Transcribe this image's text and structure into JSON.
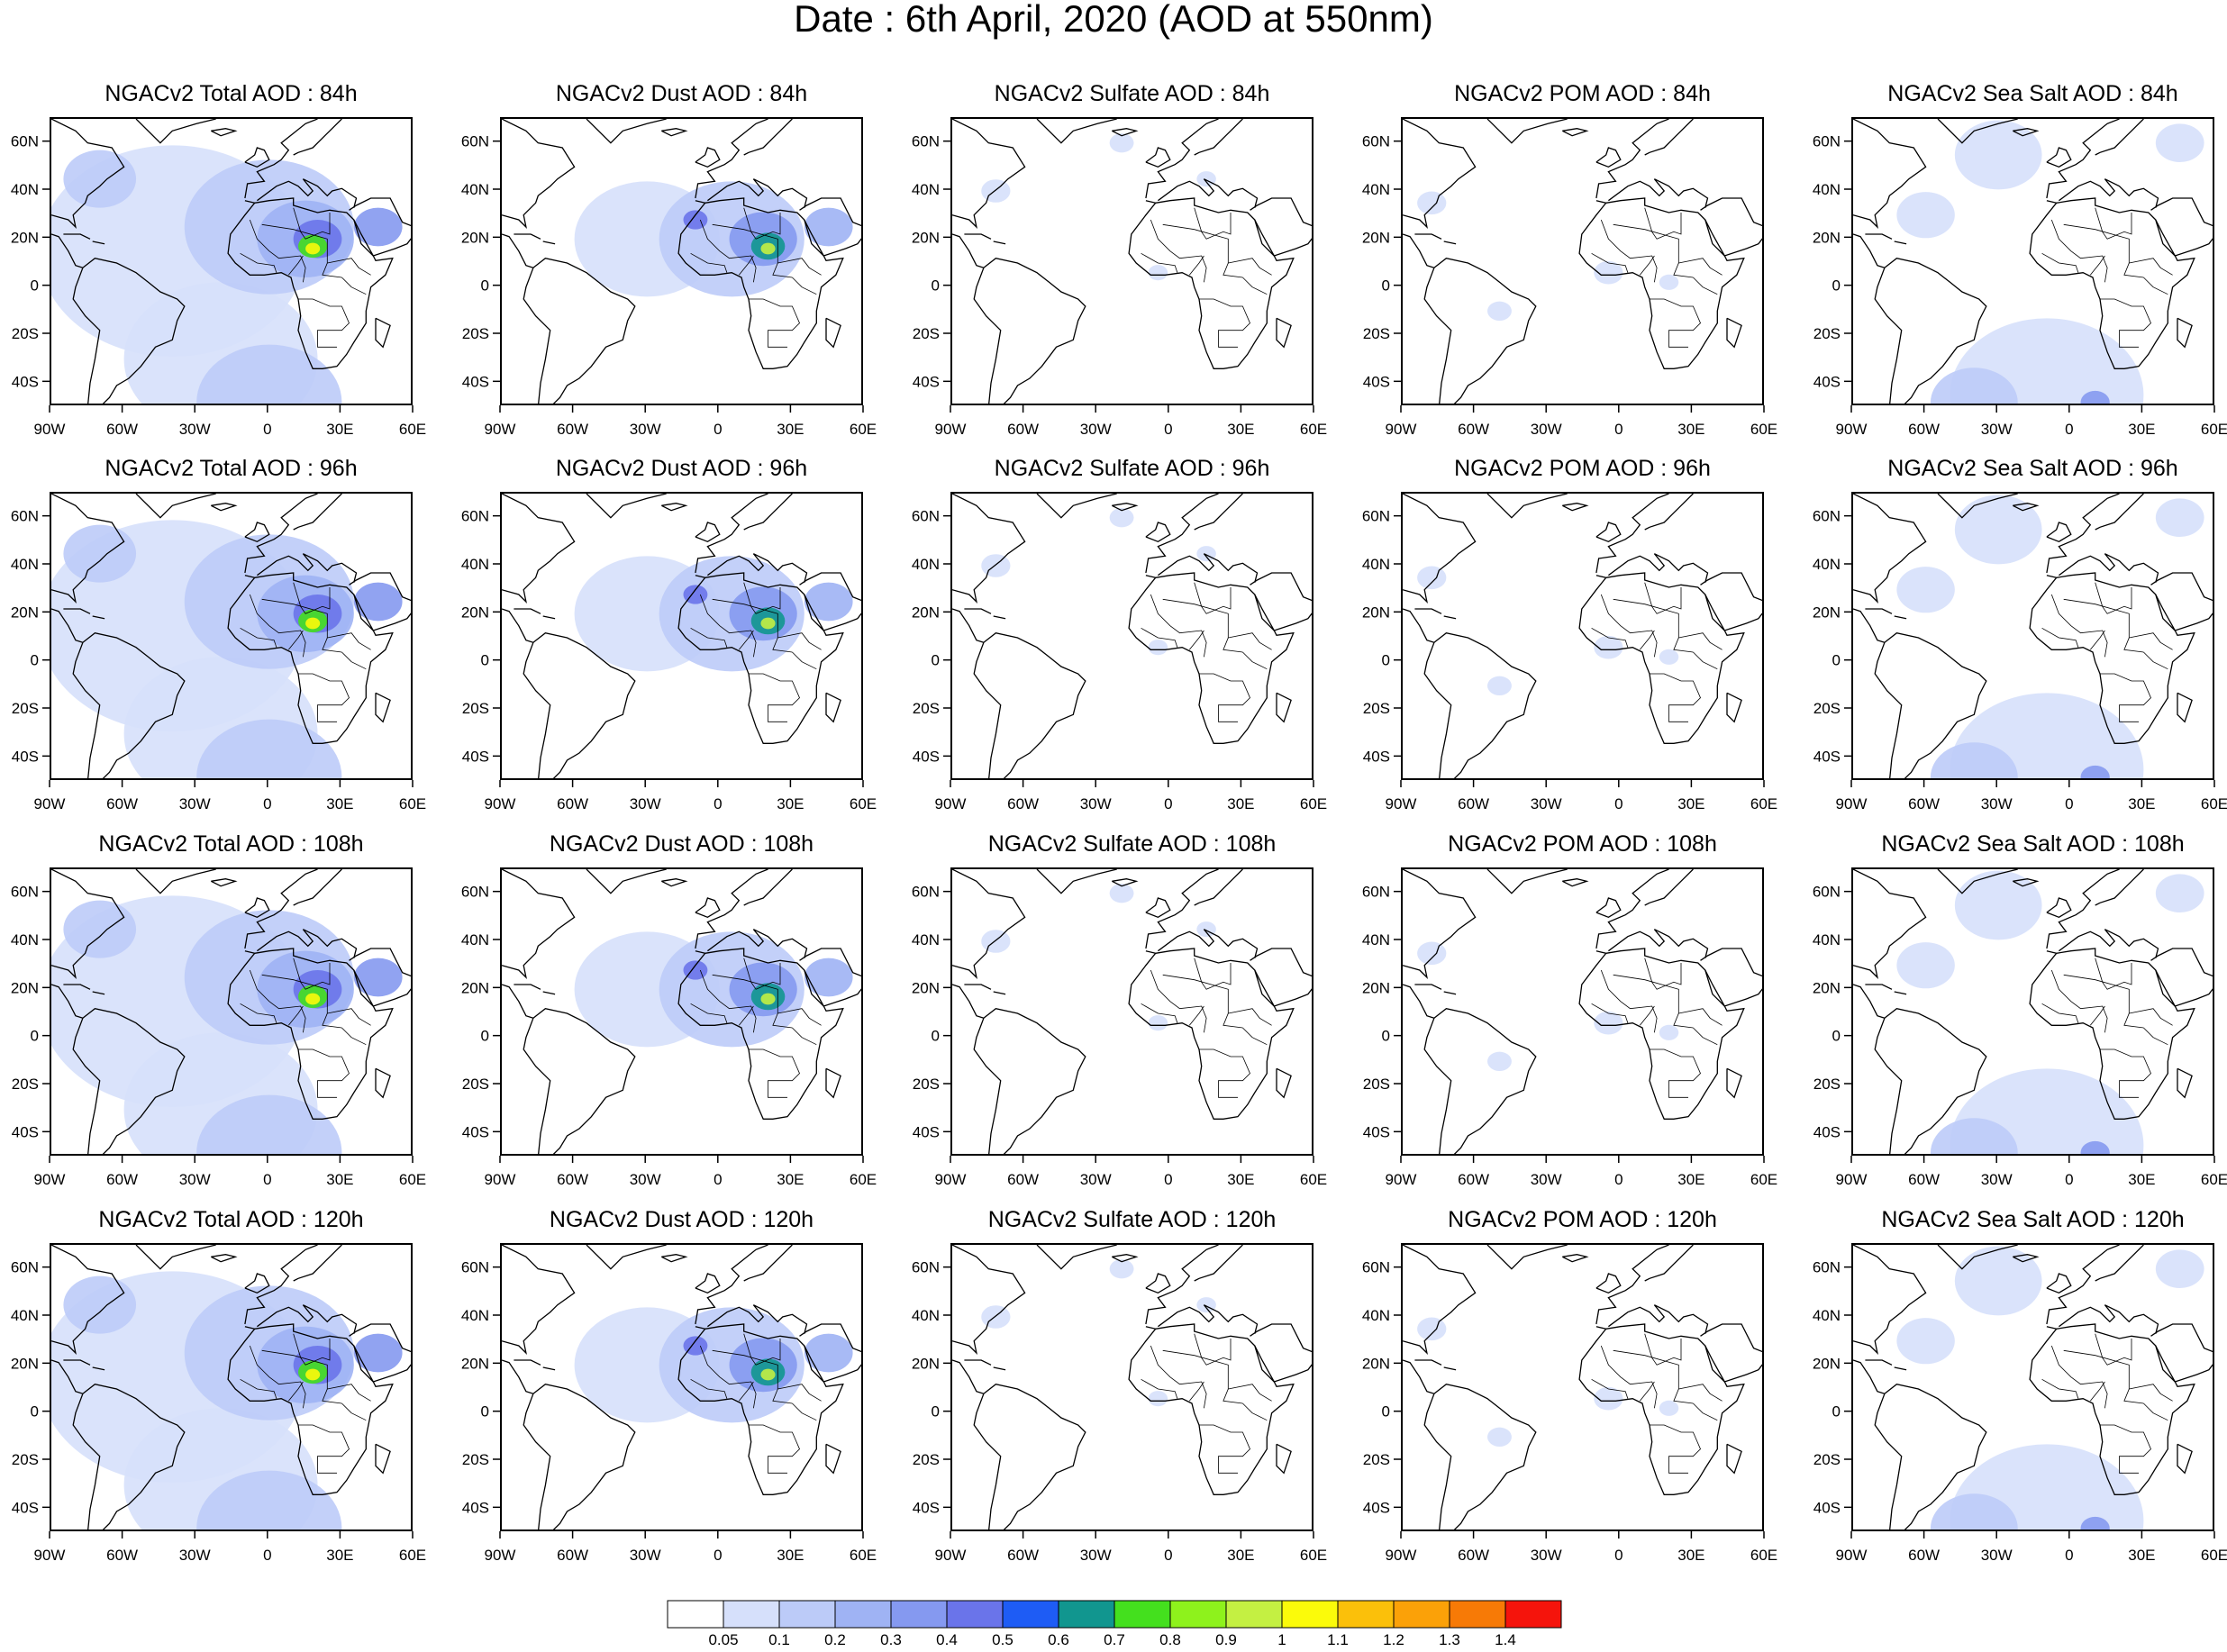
{
  "figure": {
    "title": "Date : 6th April, 2020 (AOD at 550nm)"
  },
  "axes": {
    "lon_ticks": [
      "90W",
      "60W",
      "30W",
      "0",
      "30E",
      "60E"
    ],
    "lat_ticks": [
      "60N",
      "40N",
      "20N",
      "0",
      "20S",
      "40S"
    ],
    "lon_range": [
      -90,
      60
    ],
    "lat_range": [
      -50,
      70
    ]
  },
  "species": [
    {
      "key": "total",
      "label": "NGACv2 Total AOD"
    },
    {
      "key": "dust",
      "label": "NGACv2 Dust AOD"
    },
    {
      "key": "sulfate",
      "label": "NGACv2 Sulfate AOD"
    },
    {
      "key": "pom",
      "label": "NGACv2 POM AOD"
    },
    {
      "key": "seasalt",
      "label": "NGACv2 Sea Salt AOD"
    }
  ],
  "panels": [
    [
      "NGACv2 Total AOD : 84h",
      "NGACv2 Dust AOD : 84h",
      "NGACv2 Sulfate AOD : 84h",
      "NGACv2 POM AOD : 84h",
      "NGACv2 Sea Salt AOD : 84h"
    ],
    [
      "NGACv2 Total AOD : 96h",
      "NGACv2 Dust AOD : 96h",
      "NGACv2 Sulfate AOD : 96h",
      "NGACv2 POM AOD : 96h",
      "NGACv2 Sea Salt AOD : 96h"
    ],
    [
      "NGACv2 Total AOD : 108h",
      "NGACv2 Dust AOD : 108h",
      "NGACv2 Sulfate AOD : 108h",
      "NGACv2 POM AOD : 108h",
      "NGACv2 Sea Salt AOD : 108h"
    ],
    [
      "NGACv2 Total AOD : 120h",
      "NGACv2 Dust AOD : 120h",
      "NGACv2 Sulfate AOD : 120h",
      "NGACv2 POM AOD : 120h",
      "NGACv2 Sea Salt  AOD : 120h"
    ]
  ],
  "colorbar": {
    "labels": [
      "0.05",
      "0.1",
      "0.2",
      "0.3",
      "0.4",
      "0.5",
      "0.6",
      "0.7",
      "0.8",
      "0.9",
      "1",
      "1.1",
      "1.2",
      "1.3",
      "1.4"
    ],
    "colors": [
      "#ffffff",
      "#d6e0fb",
      "#bccbf8",
      "#9fb3f4",
      "#8599f0",
      "#6a74ea",
      "#1e5cf5",
      "#11968f",
      "#44e01e",
      "#8ef21c",
      "#c4f042",
      "#fbfb0a",
      "#fbc00a",
      "#fba108",
      "#f77a06",
      "#f5140c"
    ]
  },
  "map_colors": {
    "land_outline": "#000000",
    "ocean": "#ffffff",
    "levels": [
      "#d6e0fb",
      "#bccbf8",
      "#9fb3f4",
      "#8599f0",
      "#6a74ea",
      "#11968f",
      "#44e01e",
      "#c4f042",
      "#fbfb0a",
      "#fba108",
      "#f5140c"
    ]
  },
  "aerosol_fields": {
    "total": [
      {
        "lon": -40,
        "lat": 15,
        "r": 55,
        "level": 0
      },
      {
        "lon": -20,
        "lat": -30,
        "r": 40,
        "level": 0
      },
      {
        "lon": 0,
        "lat": 25,
        "r": 35,
        "level": 1
      },
      {
        "lon": 15,
        "lat": 20,
        "r": 20,
        "level": 2
      },
      {
        "lon": 20,
        "lat": 20,
        "r": 10,
        "level": 4
      },
      {
        "lon": 18,
        "lat": 17,
        "r": 6,
        "level": 6
      },
      {
        "lon": 18,
        "lat": 16,
        "r": 3,
        "level": 8
      },
      {
        "lon": 0,
        "lat": -48,
        "r": 30,
        "level": 1
      },
      {
        "lon": -70,
        "lat": 45,
        "r": 15,
        "level": 1
      },
      {
        "lon": 45,
        "lat": 25,
        "r": 10,
        "level": 3
      }
    ],
    "dust": [
      {
        "lon": -30,
        "lat": 20,
        "r": 30,
        "level": 0
      },
      {
        "lon": 5,
        "lat": 20,
        "r": 30,
        "level": 1
      },
      {
        "lon": 18,
        "lat": 20,
        "r": 14,
        "level": 3
      },
      {
        "lon": 20,
        "lat": 17,
        "r": 7,
        "level": 5
      },
      {
        "lon": 20,
        "lat": 16,
        "r": 3,
        "level": 7
      },
      {
        "lon": 45,
        "lat": 25,
        "r": 10,
        "level": 2
      },
      {
        "lon": -10,
        "lat": 28,
        "r": 5,
        "level": 4
      }
    ],
    "sulfate": [
      {
        "lon": -72,
        "lat": 40,
        "r": 6,
        "level": 0
      },
      {
        "lon": 15,
        "lat": 45,
        "r": 4,
        "level": 0
      },
      {
        "lon": -20,
        "lat": 60,
        "r": 5,
        "level": 0
      },
      {
        "lon": -5,
        "lat": 6,
        "r": 4,
        "level": 0
      }
    ],
    "pom": [
      {
        "lon": -78,
        "lat": 35,
        "r": 6,
        "level": 0
      },
      {
        "lon": -50,
        "lat": -10,
        "r": 5,
        "level": 0
      },
      {
        "lon": -5,
        "lat": 6,
        "r": 6,
        "level": 0
      },
      {
        "lon": 20,
        "lat": 2,
        "r": 4,
        "level": 0
      }
    ],
    "seasalt": [
      {
        "lon": -30,
        "lat": 55,
        "r": 18,
        "level": 0
      },
      {
        "lon": -60,
        "lat": 30,
        "r": 12,
        "level": 0
      },
      {
        "lon": -10,
        "lat": -45,
        "r": 40,
        "level": 0
      },
      {
        "lon": -40,
        "lat": -48,
        "r": 18,
        "level": 1
      },
      {
        "lon": 10,
        "lat": -48,
        "r": 6,
        "level": 3
      },
      {
        "lon": 45,
        "lat": 60,
        "r": 10,
        "level": 0
      }
    ]
  }
}
